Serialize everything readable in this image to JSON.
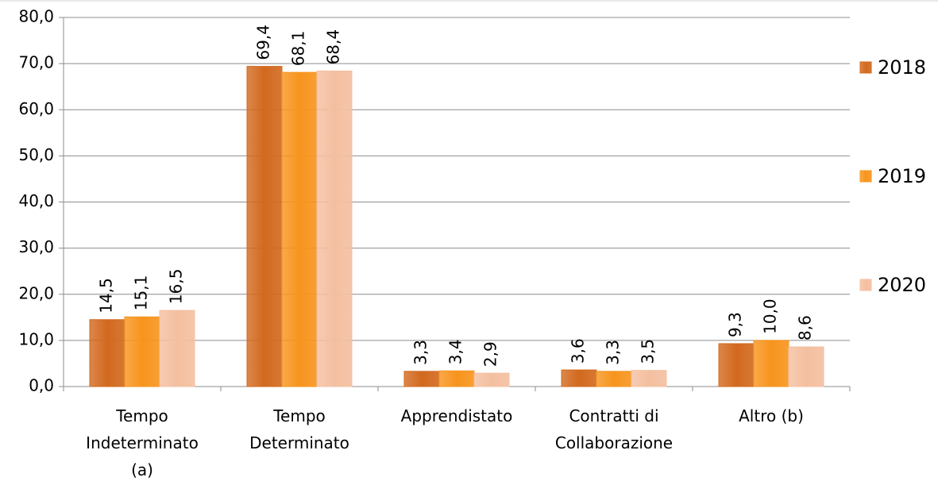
{
  "chart_data": {
    "type": "bar",
    "categories": [
      "Tempo Indeterminato (a)",
      "Tempo Determinato",
      "Apprendistato",
      "Contratti di Collaborazione",
      "Altro (b)"
    ],
    "series": [
      {
        "name": "2018",
        "color": "#d2691e",
        "values": [
          14.5,
          69.4,
          3.3,
          3.6,
          9.3
        ],
        "value_labels": [
          "14,5",
          "69,4",
          "3,3",
          "3,6",
          "9,3"
        ]
      },
      {
        "name": "2019",
        "color": "#f7941d",
        "values": [
          15.1,
          68.1,
          3.4,
          3.3,
          10.0
        ],
        "value_labels": [
          "15,1",
          "68,1",
          "3,4",
          "3,3",
          "10,0"
        ]
      },
      {
        "name": "2020",
        "color": "#f4bfa0",
        "values": [
          16.5,
          68.4,
          2.9,
          3.5,
          8.6
        ],
        "value_labels": [
          "16,5",
          "68,4",
          "2,9",
          "3,5",
          "8,6"
        ]
      }
    ],
    "ylim": [
      0,
      80
    ],
    "yticks": [
      {
        "value": 0,
        "label": "0,0"
      },
      {
        "value": 10,
        "label": "10,0"
      },
      {
        "value": 20,
        "label": "20,0"
      },
      {
        "value": 30,
        "label": "30,0"
      },
      {
        "value": 40,
        "label": "40,0"
      },
      {
        "value": 50,
        "label": "50,0"
      },
      {
        "value": 60,
        "label": "60,0"
      },
      {
        "value": 70,
        "label": "70,0"
      },
      {
        "value": 80,
        "label": "80,0"
      }
    ],
    "grid": true,
    "legend": "right"
  }
}
